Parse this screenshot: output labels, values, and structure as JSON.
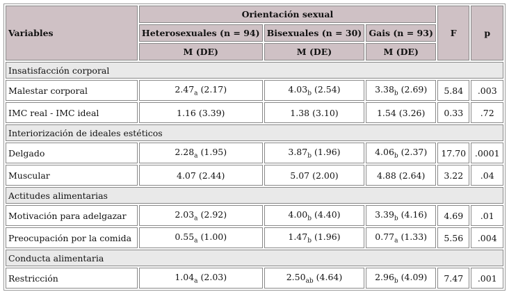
{
  "header": {
    "variables": "Variables",
    "orientation": "Orientación sexual",
    "groups": [
      "Heterosexuales (n = 94)",
      "Bisexuales (n = 30)",
      "Gais (n = 93)"
    ],
    "stat_labels": [
      "M (DE)",
      "M (DE)",
      "M (DE)"
    ],
    "F": "F",
    "p": "p"
  },
  "sections": [
    {
      "title": "Insatisfacción corporal",
      "rows": [
        {
          "label": "Malestar corporal",
          "cells": [
            {
              "m": "2.47",
              "sub": "a",
              "sd": "(2.17)"
            },
            {
              "m": "4.03",
              "sub": "b",
              "sd": "(2.54)"
            },
            {
              "m": "3.38",
              "sub": "b",
              "sd": "(2.69)"
            }
          ],
          "F": "5.84",
          "p": ".003"
        },
        {
          "label": "IMC real - IMC ideal",
          "cells": [
            {
              "m": "1.16",
              "sd": "(3.39)"
            },
            {
              "m": "1.38",
              "sd": "(3.10)"
            },
            {
              "m": "1.54",
              "sd": "(3.26)"
            }
          ],
          "F": "0.33",
          "p": ".72"
        }
      ]
    },
    {
      "title": "Interiorización de ideales estéticos",
      "rows": [
        {
          "label": "Delgado",
          "cells": [
            {
              "m": "2.28",
              "sub": "a",
              "sd": "(1.95)"
            },
            {
              "m": "3.87",
              "sub": "b",
              "sd": "(1.96)"
            },
            {
              "m": "4.06",
              "sub": "b",
              "sd": "(2.37)"
            }
          ],
          "F": "17.70",
          "p": ".0001"
        },
        {
          "label": "Muscular",
          "cells": [
            {
              "m": "4.07",
              "sd": "(2.44)"
            },
            {
              "m": "5.07",
              "sd": "(2.00)"
            },
            {
              "m": "4.88",
              "sd": "(2.64)"
            }
          ],
          "F": "3.22",
          "p": ".04"
        }
      ]
    },
    {
      "title": "Actitudes alimentarias",
      "rows": [
        {
          "label": "Motivación para adelgazar",
          "cells": [
            {
              "m": "2.03",
              "sub": "a",
              "sd": "(2.92)"
            },
            {
              "m": "4.00",
              "sub": "b",
              "sd": "(4.40)"
            },
            {
              "m": "3.39",
              "sub": "b",
              "sd": "(4.16)"
            }
          ],
          "F": "4.69",
          "p": ".01"
        },
        {
          "label": "Preocupación por la comida",
          "cells": [
            {
              "m": "0.55",
              "sub": "a",
              "sd": "(1.00)"
            },
            {
              "m": "1.47",
              "sub": "b",
              "sd": "(1.96)"
            },
            {
              "m": "0.77",
              "sub": "a",
              "sd": "(1.33)"
            }
          ],
          "F": "5.56",
          "p": ".004"
        }
      ]
    },
    {
      "title": "Conducta alimentaria",
      "rows": [
        {
          "label": "Restricción",
          "cells": [
            {
              "m": "1.04",
              "sub": "a",
              "sd": "(2.03)"
            },
            {
              "m": "2.50",
              "sub": "ab",
              "sd": "(4.64)"
            },
            {
              "m": "2.96",
              "sub": "b",
              "sd": "(4.09)"
            }
          ],
          "F": "7.47",
          "p": ".001"
        }
      ]
    }
  ]
}
